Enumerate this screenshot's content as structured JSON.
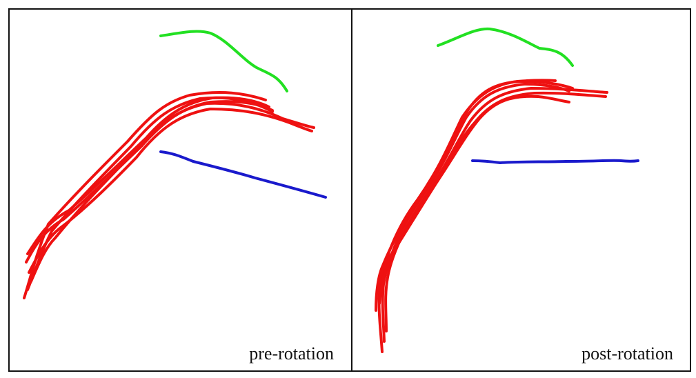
{
  "figure": {
    "panels": [
      {
        "label": "pre-rotation",
        "curves": [
          {
            "name": "green-curve",
            "color": "#22e022"
          },
          {
            "name": "red-bundle",
            "color": "#ee1111",
            "count": 6
          },
          {
            "name": "blue-curve",
            "color": "#1a1acc"
          }
        ]
      },
      {
        "label": "post-rotation",
        "curves": [
          {
            "name": "green-curve",
            "color": "#22e022"
          },
          {
            "name": "red-bundle",
            "color": "#ee1111",
            "count": 6
          },
          {
            "name": "blue-curve",
            "color": "#1a1acc"
          }
        ]
      }
    ]
  }
}
